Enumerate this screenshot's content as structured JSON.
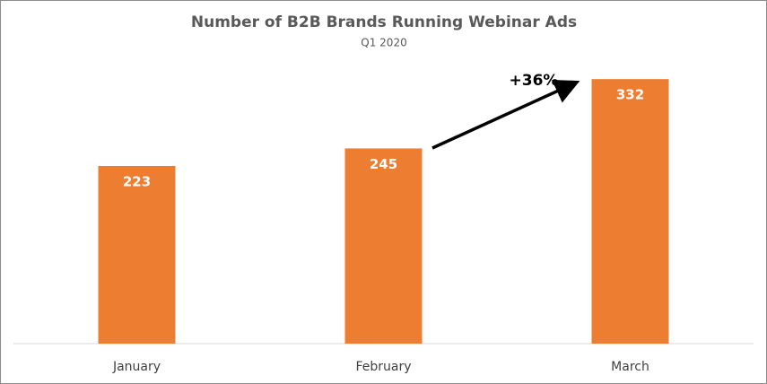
{
  "chart_data": {
    "type": "bar",
    "title": "Number of B2B Brands Running Webinar Ads",
    "subtitle": "Q1 2020",
    "categories": [
      "January",
      "February",
      "March"
    ],
    "values": [
      223,
      245,
      332
    ],
    "color": "#ed7d31",
    "annotation": "+36%"
  }
}
